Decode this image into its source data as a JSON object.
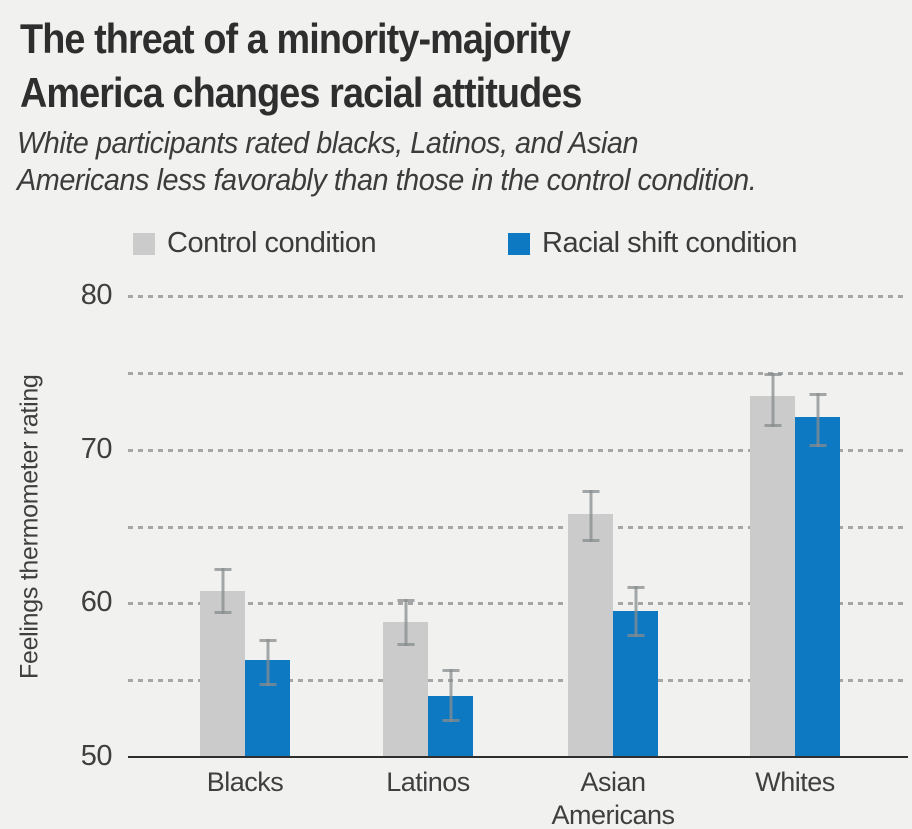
{
  "title": {
    "lines": [
      "The threat of a minority-majority",
      "America changes racial attitudes"
    ]
  },
  "subtitle": {
    "lines": [
      "White participants rated blacks, Latinos, and Asian",
      "Americans less favorably than those in the control condition."
    ]
  },
  "legend": {
    "items": [
      {
        "label": "Control condition",
        "color": "#cacbca"
      },
      {
        "label": "Racial shift condition",
        "color": "#0c79c2"
      }
    ]
  },
  "chart_data": {
    "type": "bar",
    "categories": [
      "Blacks",
      "Latinos",
      "Asian\nAmericans",
      "Whites"
    ],
    "series": [
      {
        "name": "Control condition",
        "color": "#cacbca",
        "values": [
          60.8,
          58.8,
          65.8,
          73.5
        ],
        "error_low": [
          59.3,
          57.2,
          64.0,
          71.5
        ],
        "error_high": [
          62.3,
          60.3,
          67.4,
          75.0
        ]
      },
      {
        "name": "Racial shift condition",
        "color": "#0c79c2",
        "values": [
          56.3,
          54.0,
          59.5,
          72.1
        ],
        "error_low": [
          54.6,
          52.3,
          57.8,
          70.2
        ],
        "error_high": [
          57.7,
          55.7,
          61.1,
          73.7
        ]
      }
    ],
    "title": "The threat of a minority-majority America changes racial attitudes",
    "xlabel": "",
    "ylabel": "Feelings thermometer rating",
    "ylim": [
      50,
      80
    ],
    "ytick_labels": [
      50,
      60,
      70,
      80
    ],
    "gridline_values": [
      55,
      60,
      65,
      70,
      75,
      80
    ],
    "grid_style": "dotted",
    "legend_position": "top"
  },
  "colors": {
    "background": "#f1f2f0",
    "title_text": "#2e2e2e",
    "body_text": "#3c3c3c",
    "axis_line": "#2e2e2e",
    "gridline": "#a6a6a6",
    "error_bar": "#878c8e",
    "control_bar": "#cacbca",
    "shift_bar": "#0c79c2"
  }
}
